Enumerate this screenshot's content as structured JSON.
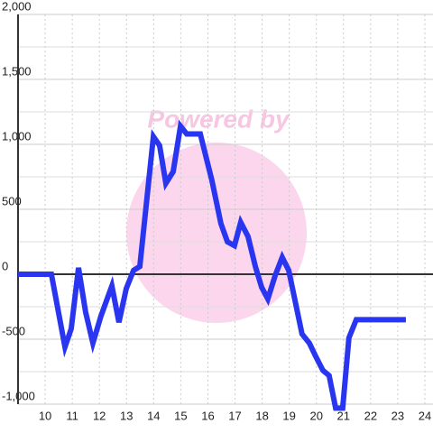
{
  "chart_data": {
    "type": "line",
    "watermark": "Powered by",
    "x": [
      9.0,
      10.23,
      10.73,
      10.96,
      11.23,
      11.49,
      11.76,
      12.06,
      12.46,
      12.72,
      12.99,
      13.26,
      13.49,
      13.99,
      14.22,
      14.45,
      14.72,
      14.99,
      15.22,
      15.72,
      16.15,
      16.48,
      16.72,
      16.98,
      17.21,
      17.48,
      17.75,
      17.98,
      18.21,
      18.48,
      18.74,
      18.98,
      19.47,
      19.74,
      19.97,
      20.24,
      20.47,
      20.71,
      20.97,
      21.2,
      21.47,
      23.3
    ],
    "series": [
      {
        "color": "#2a35f0",
        "values": [
          0,
          0,
          -560,
          -420,
          50,
          -290,
          -530,
          -320,
          -90,
          -370,
          -110,
          30,
          60,
          1060,
          990,
          700,
          790,
          1140,
          1080,
          1080,
          720,
          390,
          250,
          220,
          400,
          290,
          60,
          -100,
          -190,
          -10,
          130,
          30,
          -460,
          -530,
          -630,
          -740,
          -780,
          -1030,
          -1030,
          -490,
          -350,
          -350
        ]
      }
    ],
    "xlim": [
      9,
      24.3
    ],
    "xticks": [
      10,
      11,
      12,
      13,
      14,
      15,
      16,
      17,
      18,
      19,
      20,
      21,
      22,
      23,
      24
    ],
    "ylim": [
      -1000,
      2000
    ],
    "yticks": [
      {
        "value": -1000,
        "label": "-1,000"
      },
      -500,
      0,
      500,
      {
        "value": 1000,
        "label": "1,000"
      },
      {
        "value": 1500,
        "label": "1,500"
      },
      {
        "value": 2000,
        "label": "2,000"
      }
    ],
    "y_minor_ticks": [
      -750,
      -250,
      250,
      750,
      1250,
      1750
    ],
    "grid": true
  }
}
